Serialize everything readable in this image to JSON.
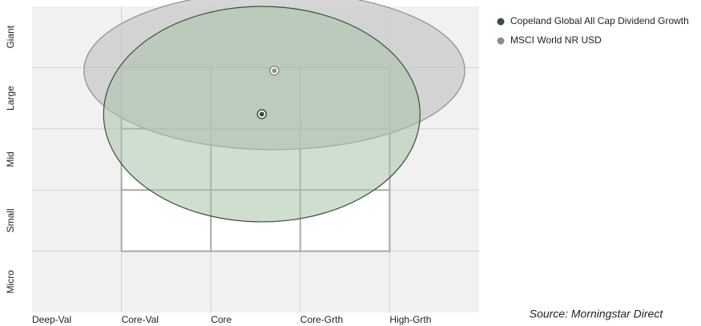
{
  "chart_data": {
    "type": "ownership-zone",
    "xlim": [
      0,
      5
    ],
    "ylim": [
      0,
      5
    ],
    "xticks": [
      {
        "value": 0,
        "label": "Deep-Val"
      },
      {
        "value": 1,
        "label": "Core-Val"
      },
      {
        "value": 2,
        "label": "Core"
      },
      {
        "value": 3,
        "label": "Core-Grth"
      },
      {
        "value": 4,
        "label": "High-Grth"
      }
    ],
    "yticks": [
      {
        "value": 0.5,
        "label": "Micro"
      },
      {
        "value": 1.5,
        "label": "Small"
      },
      {
        "value": 2.5,
        "label": "Mid"
      },
      {
        "value": 3.5,
        "label": "Large"
      },
      {
        "value": 4.5,
        "label": "Giant"
      }
    ],
    "xgrid": [
      1,
      2,
      3,
      4
    ],
    "ygrid": [
      1,
      2,
      3,
      4
    ],
    "style_box": {
      "x": [
        1,
        4
      ],
      "y": [
        1,
        4
      ]
    },
    "series": [
      {
        "name": "MSCI World NR USD",
        "color": "#8c8c8c",
        "x": [
          2.71
        ],
        "y": [
          3.95
        ],
        "rx": [
          2.13
        ],
        "ry": [
          1.29
        ]
      },
      {
        "name": "Copeland Global All Cap Dividend Growth",
        "color": "#34523a",
        "x": [
          2.57
        ],
        "y": [
          3.24
        ],
        "rx": [
          1.77
        ],
        "ry": [
          1.76
        ]
      }
    ],
    "source": "Source: Morningstar Direct"
  }
}
